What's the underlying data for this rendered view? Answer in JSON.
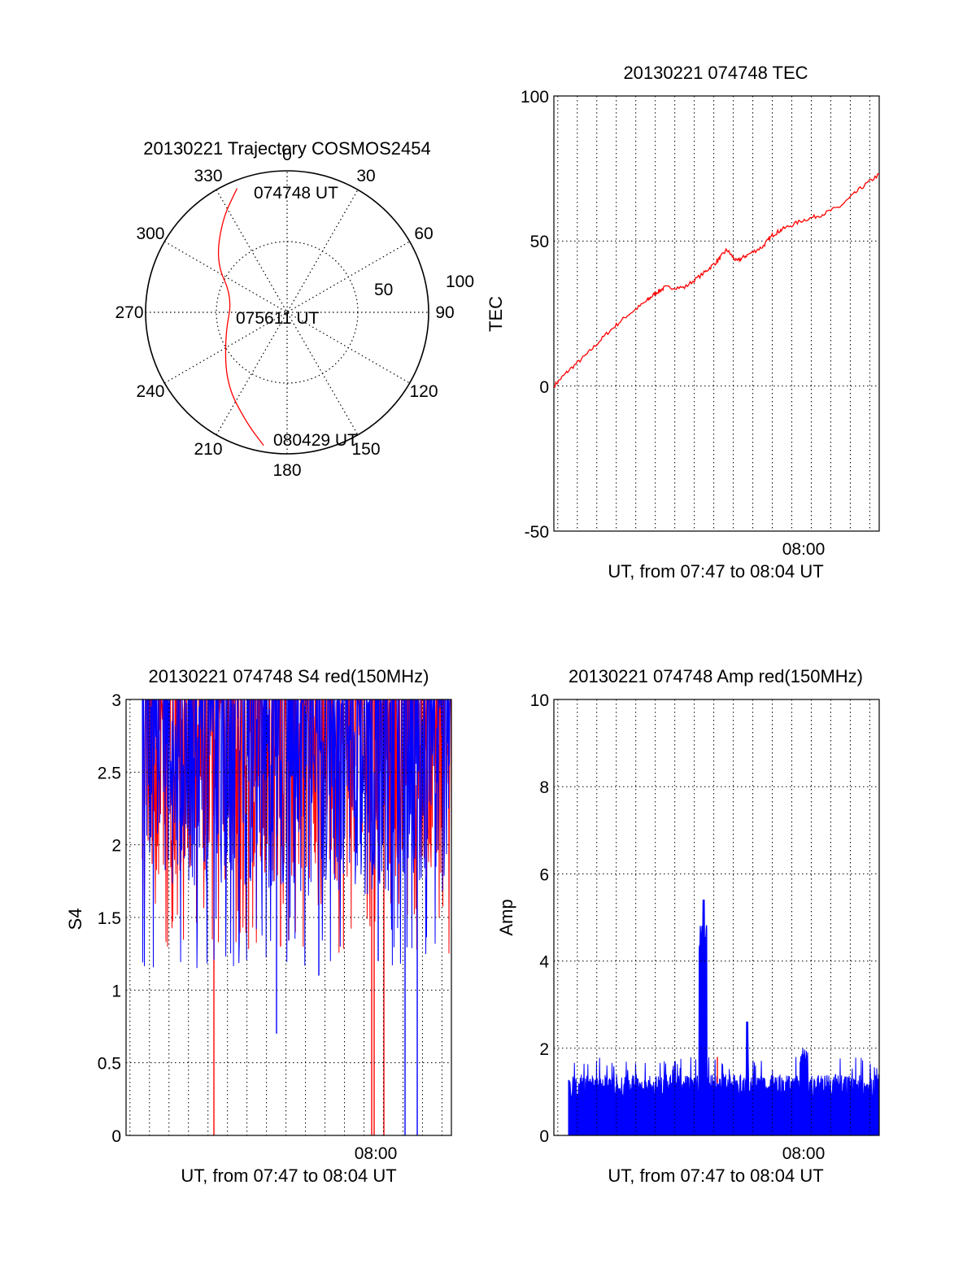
{
  "chart_data": [
    {
      "type": "polar",
      "title": "20130221 Trajectory COSMOS2454",
      "azimuth_labels": [
        "0",
        "30",
        "60",
        "90",
        "120",
        "150",
        "180",
        "210",
        "240",
        "270",
        "300",
        "330"
      ],
      "radial_labels": [
        "50",
        "100"
      ],
      "grid": true,
      "series": [
        {
          "color": "#ff0000",
          "points": [
            {
              "az": 338,
              "el": 5,
              "label": "074748 UT"
            },
            {
              "az": 325,
              "el": 18
            },
            {
              "az": 305,
              "el": 35
            },
            {
              "az": 285,
              "el": 54,
              "label": "075611 UT"
            },
            {
              "az": 250,
              "el": 48
            },
            {
              "az": 220,
              "el": 30
            },
            {
              "az": 200,
              "el": 15
            },
            {
              "az": 190,
              "el": 4,
              "label": "080429 UT"
            }
          ]
        }
      ]
    },
    {
      "type": "line",
      "title": "20130221 074748 TEC",
      "xlabel": "UT, from 07:47 to 08:04 UT",
      "ylabel": "TEC",
      "ylim": [
        -50,
        100
      ],
      "yticks": [
        "100",
        "50",
        "0",
        "-50"
      ],
      "xticks": [
        "08:00"
      ],
      "grid": true,
      "series": [
        {
          "color": "#ff0000",
          "x": [
            "07:47:48",
            "07:48:30",
            "07:49:30",
            "07:50:30",
            "07:51:30",
            "07:52:30",
            "07:53:00",
            "07:53:30",
            "07:54:30",
            "07:55:30",
            "07:56:10",
            "07:56:40",
            "07:57:10",
            "07:57:40",
            "07:58:30",
            "07:59:00",
            "07:59:30",
            "08:00:30",
            "08:01:30",
            "08:02:30",
            "08:03:30",
            "08:04:29"
          ],
          "values": [
            0,
            5,
            11,
            18,
            24,
            29,
            32,
            34,
            34,
            39,
            43,
            47,
            43,
            45,
            48,
            52,
            54,
            57,
            59,
            62,
            68,
            73
          ]
        }
      ]
    },
    {
      "type": "line",
      "title": "20130221 074748 S4 red(150MHz)",
      "xlabel": "UT, from 07:47 to 08:04 UT",
      "ylabel": "S4",
      "ylim": [
        0,
        3
      ],
      "yticks": [
        "3",
        "2.5",
        "2",
        "1.5",
        "1",
        "0.5",
        "0"
      ],
      "xticks": [
        "08:00"
      ],
      "grid": true,
      "series": [
        {
          "color": "#0000ff",
          "values_range": [
            1.2,
            3
          ],
          "dips_to": [
            0.7,
            0
          ]
        },
        {
          "color": "#ff0000",
          "values_range": [
            1.4,
            3
          ],
          "dips_to": [
            0
          ]
        }
      ]
    },
    {
      "type": "line",
      "title": "20130221 074748 Amp red(150MHz)",
      "xlabel": "UT, from 07:47 to 08:04 UT",
      "ylabel": "Amp",
      "ylim": [
        0,
        10
      ],
      "yticks": [
        "10",
        "8",
        "6",
        "4",
        "2",
        "0"
      ],
      "xticks": [
        "08:00"
      ],
      "grid": true,
      "series": [
        {
          "color": "#0000ff",
          "values_range": [
            0,
            1.8
          ],
          "peak": 5.4
        },
        {
          "color": "#ff0000",
          "values_range": [
            0,
            1.8
          ]
        }
      ]
    }
  ],
  "palette": {
    "primary": "#0000ff",
    "secondary": "#ff0000",
    "axes": "#000000",
    "grid": "#000000"
  }
}
